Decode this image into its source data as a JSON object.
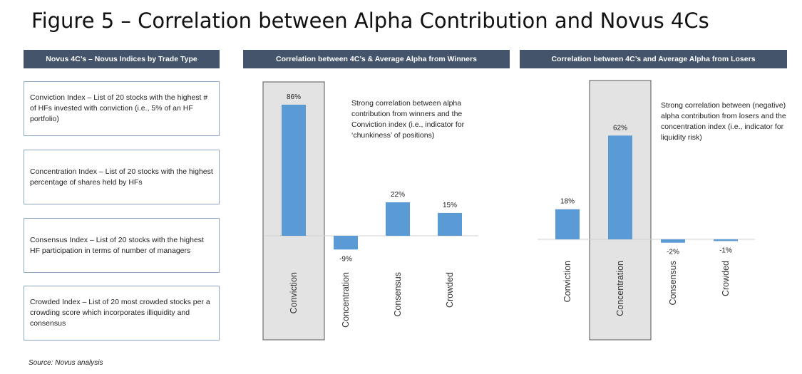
{
  "title": "Figure 5 – Correlation between Alpha Contribution and Novus 4Cs",
  "left_panel": {
    "header": "Novus 4C’s – Novus Indices by Trade Type",
    "boxes": [
      "Conviction Index – List of 20 stocks with the highest # of HFs invested with conviction (i.e., 5% of an HF portfolio)",
      "Concentration Index – List of 20 stocks with the highest percentage of shares held by HFs",
      "Consensus Index – List of 20 stocks with the highest HF participation in terms of number of managers",
      "Crowded Index – List of 20 most crowded stocks per a crowding score which incorporates illiquidity and consensus"
    ]
  },
  "winners_panel": {
    "header": "Correlation between 4C’s & Average Alpha  from Winners",
    "note": "Strong correlation between alpha contribution from winners and the Conviction index (i.e., indicator for ‘chunkiness’ of positions)"
  },
  "losers_panel": {
    "header": "Correlation between 4C’s and Average Alpha  from Losers",
    "note": "Strong correlation between (negative) alpha contribution from losers and the concentration index (i.e., indicator for liquidity risk)"
  },
  "source": "Source: Novus analysis",
  "colors": {
    "bar": "#5b9bd5",
    "highlight_fill": "#e3e3e3",
    "highlight_border": "#555555",
    "header_bg": "#44546a",
    "box_border": "#8eaacb"
  },
  "chart_data": [
    {
      "type": "bar",
      "title": "Correlation between 4C’s & Average Alpha  from Winners",
      "categories": [
        "Conviction",
        "Concentration",
        "Consensus",
        "Crowded"
      ],
      "values": [
        86,
        -9,
        22,
        15
      ],
      "value_labels": [
        "86%",
        "-9%",
        "22%",
        "15%"
      ],
      "highlighted_category": "Conviction",
      "ylim": [
        -11,
        90
      ],
      "grid": false
    },
    {
      "type": "bar",
      "title": "Correlation between 4C’s and Average Alpha  from Losers",
      "categories": [
        "Conviction",
        "Concentration",
        "Consensus",
        "Crowded"
      ],
      "values": [
        18,
        62,
        -2,
        -1
      ],
      "value_labels": [
        "18%",
        "62%",
        "-2%",
        "-1%"
      ],
      "highlighted_category": "Concentration",
      "ylim": [
        -4,
        65
      ],
      "grid": false
    }
  ]
}
